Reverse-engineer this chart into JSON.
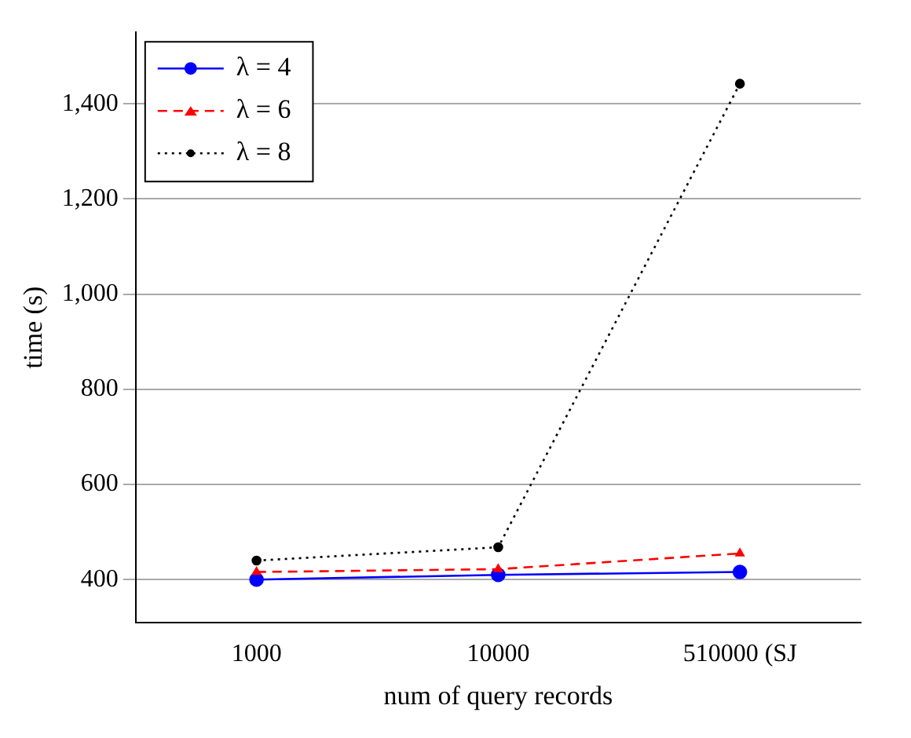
{
  "chart_data": {
    "type": "line",
    "xlabel": "num of query records",
    "ylabel": "time (s)",
    "categories": [
      "1000",
      "10000",
      "510000 (SJ"
    ],
    "series": [
      {
        "name": "λ = 4",
        "color": "#0000ff",
        "values": [
          400,
          410,
          416
        ],
        "marker": "circle",
        "line_style": "solid"
      },
      {
        "name": "λ = 6",
        "color": "#ff0000",
        "values": [
          416,
          422,
          455
        ],
        "marker": "triangle",
        "line_style": "dashed"
      },
      {
        "name": "λ = 8",
        "color": "#000000",
        "values": [
          440,
          468,
          1442
        ],
        "marker": "circle",
        "line_style": "dotted"
      }
    ],
    "ylim": [
      310,
      1550
    ],
    "yticks": [
      {
        "value": 400,
        "label": "400"
      },
      {
        "value": 600,
        "label": "600"
      },
      {
        "value": 800,
        "label": "800"
      },
      {
        "value": 1000,
        "label": "1,000"
      },
      {
        "value": 1200,
        "label": "1,200"
      },
      {
        "value": 1400,
        "label": "1,400"
      }
    ],
    "grid": "y",
    "legend": "top left"
  }
}
